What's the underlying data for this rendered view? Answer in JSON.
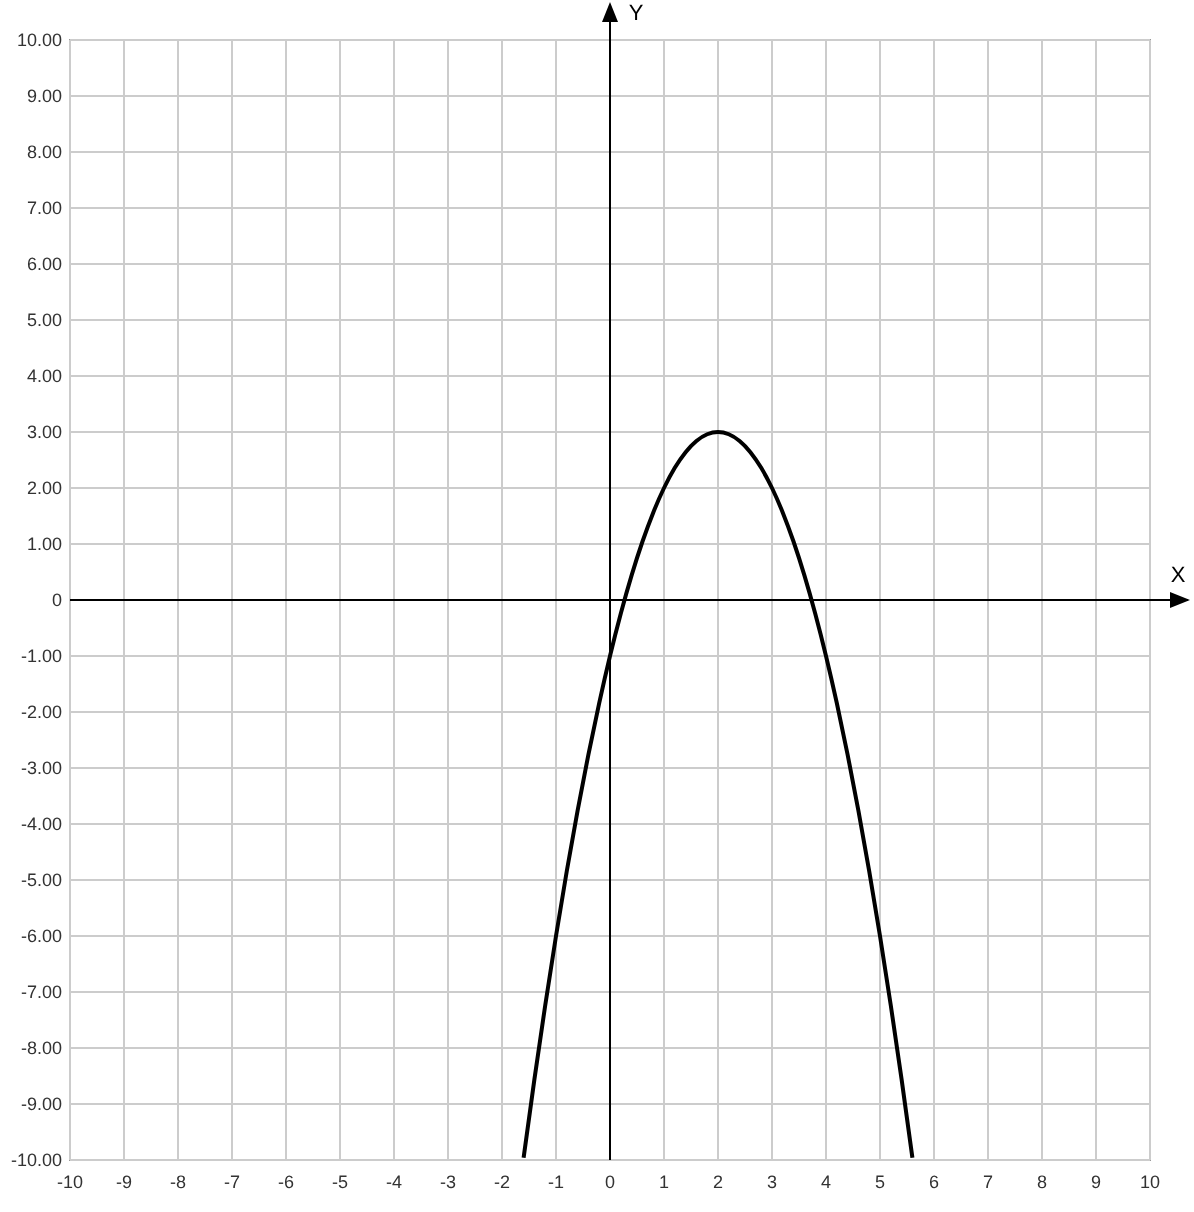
{
  "chart_data": {
    "type": "line",
    "xlabel": "X",
    "ylabel": "Y",
    "x": [
      -1.6,
      -1.4,
      -1.2,
      -1.0,
      -0.8,
      -0.6,
      -0.4,
      -0.2,
      0,
      0.2,
      0.4,
      0.6,
      0.8,
      1.0,
      1.2,
      1.4,
      1.6,
      1.8,
      2.0,
      2.2,
      2.4,
      2.6,
      2.8,
      3.0,
      3.2,
      3.4,
      3.6,
      3.8,
      4.0,
      4.2,
      4.4,
      4.6,
      4.8,
      5.0,
      5.2,
      5.4,
      5.6
    ],
    "series": [
      {
        "color": "#000000",
        "values": [
          -9.96,
          -8.56,
          -7.24,
          -6,
          -4.84,
          -3.76,
          -2.76,
          -1.84,
          -1,
          -0.24,
          0.44,
          1.04,
          1.56,
          2,
          2.36,
          2.64,
          2.84,
          2.96,
          3,
          2.96,
          2.84,
          2.64,
          2.36,
          2,
          1.56,
          1.04,
          0.44,
          -0.24,
          -1,
          -1.84,
          -2.76,
          -3.76,
          -4.84,
          -6,
          -7.24,
          -8.56,
          -9.96
        ]
      }
    ],
    "xlim": [
      -10,
      10
    ],
    "ylim": [
      -10,
      10
    ],
    "xticks": [
      -10,
      -9,
      -8,
      -7,
      -6,
      -5,
      -4,
      -3,
      -2,
      -1,
      0,
      1,
      2,
      3,
      4,
      5,
      6,
      7,
      8,
      9,
      10
    ],
    "yticks": [
      {
        "value": 10,
        "label": "10.00"
      },
      {
        "value": 9,
        "label": "9.00"
      },
      {
        "value": 8,
        "label": "8.00"
      },
      {
        "value": 7,
        "label": "7.00"
      },
      {
        "value": 6,
        "label": "6.00"
      },
      {
        "value": 5,
        "label": "5.00"
      },
      {
        "value": 4,
        "label": "4.00"
      },
      {
        "value": 3,
        "label": "3.00"
      },
      {
        "value": 2,
        "label": "2.00"
      },
      {
        "value": 1,
        "label": "1.00"
      },
      0,
      {
        "value": -1,
        "label": "-1.00"
      },
      {
        "value": -2,
        "label": "-2.00"
      },
      {
        "value": -3,
        "label": "-3.00"
      },
      {
        "value": -4,
        "label": "-4.00"
      },
      {
        "value": -5,
        "label": "-5.00"
      },
      {
        "value": -6,
        "label": "-6.00"
      },
      {
        "value": -7,
        "label": "-7.00"
      },
      {
        "value": -8,
        "label": "-8.00"
      },
      {
        "value": -9,
        "label": "-9.00"
      },
      {
        "value": -10,
        "label": "-10.00"
      }
    ],
    "grid": true,
    "marker": "none",
    "line_style": "solid"
  }
}
